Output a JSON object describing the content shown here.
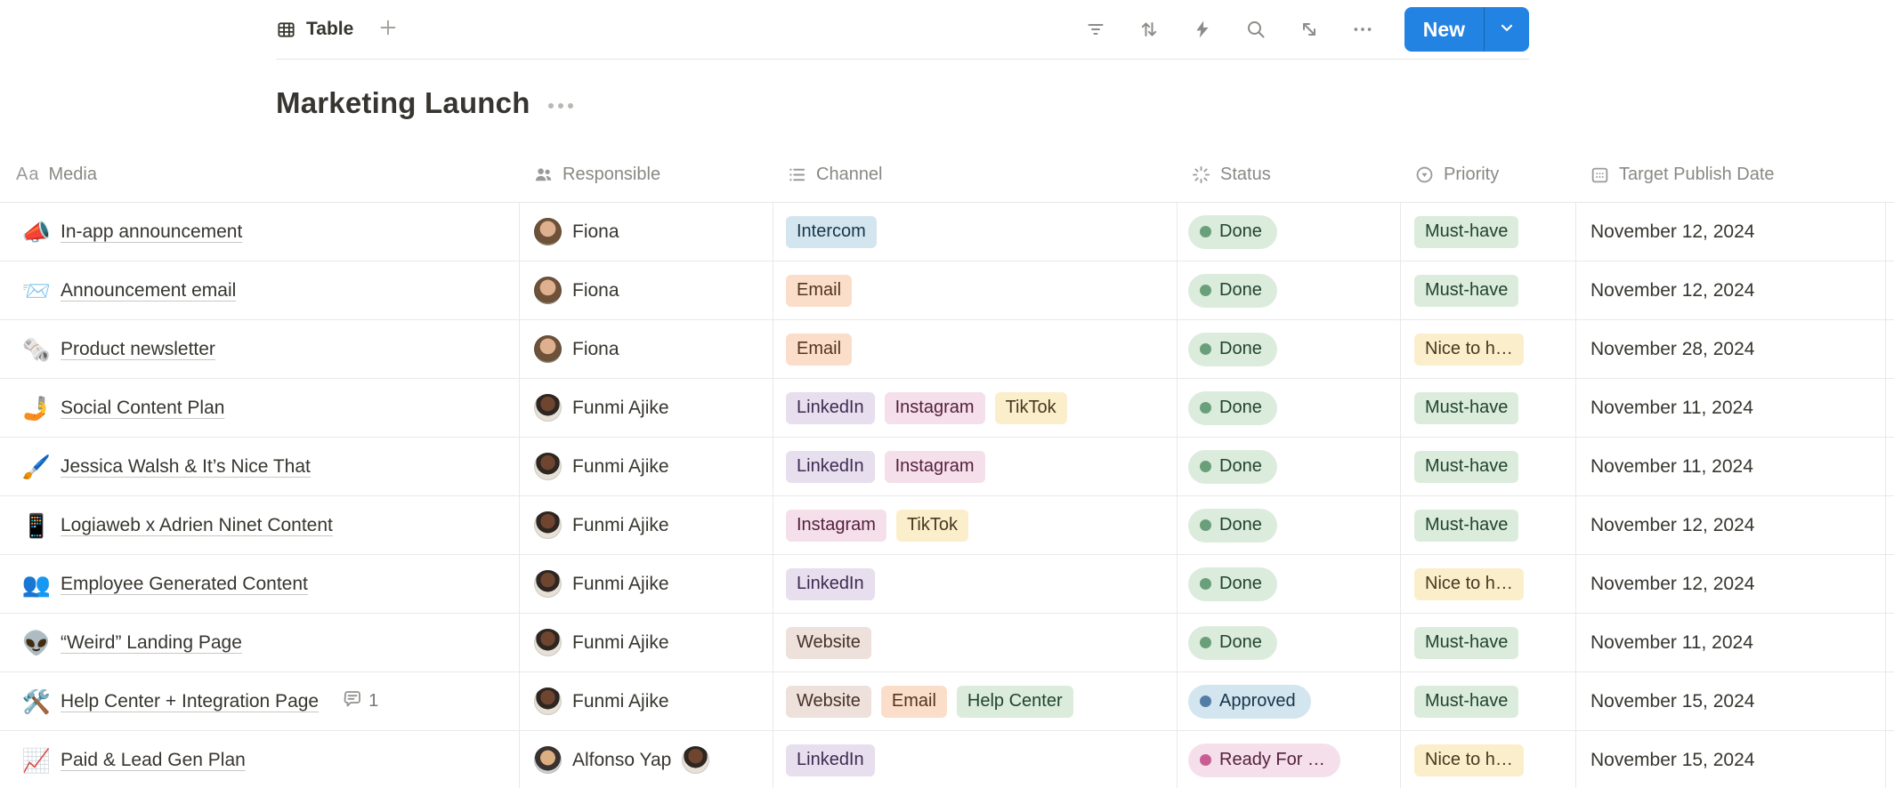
{
  "toolbar": {
    "view_tab": {
      "label": "Table",
      "icon": "table-view-icon"
    },
    "add_view_icon": "plus-icon",
    "action_icons": [
      "filter-icon",
      "sort-icon",
      "automation-icon",
      "search-icon",
      "expand-icon",
      "more-icon"
    ],
    "new_button": {
      "label": "New",
      "caret_icon": "chevron-down-icon"
    }
  },
  "page": {
    "title": "Marketing Launch",
    "menu_icon": "more-icon"
  },
  "palette": {
    "blue": {
      "bg": "#d3e5ef",
      "text": "#17344a"
    },
    "orange": {
      "bg": "#fadec9",
      "text": "#53351f"
    },
    "purple": {
      "bg": "#e7deee",
      "text": "#3d2b52"
    },
    "pink": {
      "bg": "#f4dfeb",
      "text": "#541f3b"
    },
    "yellow": {
      "bg": "#fbeecb",
      "text": "#473821"
    },
    "brown": {
      "bg": "#eee0da",
      "text": "#453229"
    },
    "green": {
      "bg": "#dcecdc",
      "text": "#20442e"
    },
    "status_dots": {
      "green": "#6a9f7b",
      "blue": "#527da5",
      "pink": "#c75d92"
    }
  },
  "table": {
    "columns": [
      {
        "key": "media",
        "label": "Media",
        "icon": "text-icon"
      },
      {
        "key": "resp",
        "label": "Responsible",
        "icon": "people-icon"
      },
      {
        "key": "channel",
        "label": "Channel",
        "icon": "list-icon"
      },
      {
        "key": "status",
        "label": "Status",
        "icon": "status-icon"
      },
      {
        "key": "priority",
        "label": "Priority",
        "icon": "priority-icon"
      },
      {
        "key": "date",
        "label": "Target Publish Date",
        "icon": "calendar-icon"
      }
    ],
    "rows": [
      {
        "media": {
          "emoji": "📣",
          "title": "In-app announcement"
        },
        "responsible": [
          {
            "name": "Fiona",
            "avatar": "fiona"
          }
        ],
        "channels": [
          {
            "label": "Intercom",
            "color": "blue"
          }
        ],
        "status": {
          "label": "Done",
          "color": "green"
        },
        "priority": {
          "label": "Must-have",
          "color": "green"
        },
        "date": "November 12, 2024"
      },
      {
        "media": {
          "emoji": "📨",
          "title": "Announcement email"
        },
        "responsible": [
          {
            "name": "Fiona",
            "avatar": "fiona"
          }
        ],
        "channels": [
          {
            "label": "Email",
            "color": "orange"
          }
        ],
        "status": {
          "label": "Done",
          "color": "green"
        },
        "priority": {
          "label": "Must-have",
          "color": "green"
        },
        "date": "November 12, 2024"
      },
      {
        "media": {
          "emoji": "🗞️",
          "title": "Product newsletter"
        },
        "responsible": [
          {
            "name": "Fiona",
            "avatar": "fiona"
          }
        ],
        "channels": [
          {
            "label": "Email",
            "color": "orange"
          }
        ],
        "status": {
          "label": "Done",
          "color": "green"
        },
        "priority": {
          "label": "Nice to h…",
          "color": "yellow"
        },
        "date": "November 28, 2024"
      },
      {
        "media": {
          "emoji": "🤳",
          "title": "Social Content Plan"
        },
        "responsible": [
          {
            "name": "Funmi Ajike",
            "avatar": "funmi"
          }
        ],
        "channels": [
          {
            "label": "LinkedIn",
            "color": "purple"
          },
          {
            "label": "Instagram",
            "color": "pink"
          },
          {
            "label": "TikTok",
            "color": "yellow"
          }
        ],
        "status": {
          "label": "Done",
          "color": "green"
        },
        "priority": {
          "label": "Must-have",
          "color": "green"
        },
        "date": "November 11, 2024"
      },
      {
        "media": {
          "emoji": "🖌️",
          "title": "Jessica Walsh & It’s Nice That"
        },
        "responsible": [
          {
            "name": "Funmi Ajike",
            "avatar": "funmi"
          }
        ],
        "channels": [
          {
            "label": "LinkedIn",
            "color": "purple"
          },
          {
            "label": "Instagram",
            "color": "pink"
          }
        ],
        "status": {
          "label": "Done",
          "color": "green"
        },
        "priority": {
          "label": "Must-have",
          "color": "green"
        },
        "date": "November 11, 2024"
      },
      {
        "media": {
          "emoji": "📱",
          "title": "Logiaweb x Adrien Ninet Content"
        },
        "responsible": [
          {
            "name": "Funmi Ajike",
            "avatar": "funmi"
          }
        ],
        "channels": [
          {
            "label": "Instagram",
            "color": "pink"
          },
          {
            "label": "TikTok",
            "color": "yellow"
          }
        ],
        "status": {
          "label": "Done",
          "color": "green"
        },
        "priority": {
          "label": "Must-have",
          "color": "green"
        },
        "date": "November 12, 2024"
      },
      {
        "media": {
          "emoji": "👥",
          "title": "Employee Generated Content"
        },
        "responsible": [
          {
            "name": "Funmi Ajike",
            "avatar": "funmi"
          }
        ],
        "channels": [
          {
            "label": "LinkedIn",
            "color": "purple"
          }
        ],
        "status": {
          "label": "Done",
          "color": "green"
        },
        "priority": {
          "label": "Nice to h…",
          "color": "yellow"
        },
        "date": "November 12, 2024"
      },
      {
        "media": {
          "emoji": "👽",
          "title": "“Weird” Landing Page"
        },
        "responsible": [
          {
            "name": "Funmi Ajike",
            "avatar": "funmi"
          }
        ],
        "channels": [
          {
            "label": "Website",
            "color": "brown"
          }
        ],
        "status": {
          "label": "Done",
          "color": "green"
        },
        "priority": {
          "label": "Must-have",
          "color": "green"
        },
        "date": "November 11, 2024"
      },
      {
        "media": {
          "emoji": "🛠️",
          "title": "Help Center + Integration Page",
          "comment_count": "1"
        },
        "responsible": [
          {
            "name": "Funmi Ajike",
            "avatar": "funmi"
          }
        ],
        "channels": [
          {
            "label": "Website",
            "color": "brown"
          },
          {
            "label": "Email",
            "color": "orange"
          },
          {
            "label": "Help Center",
            "color": "green"
          }
        ],
        "status": {
          "label": "Approved",
          "color": "blue"
        },
        "priority": {
          "label": "Must-have",
          "color": "green"
        },
        "date": "November 15, 2024"
      },
      {
        "media": {
          "emoji": "📈",
          "title": "Paid & Lead Gen Plan"
        },
        "responsible": [
          {
            "name": "Alfonso Yap",
            "avatar": "alfonso"
          },
          {
            "name": "",
            "avatar": "funmi"
          }
        ],
        "channels": [
          {
            "label": "LinkedIn",
            "color": "purple"
          }
        ],
        "status": {
          "label": "Ready For …",
          "color": "pink"
        },
        "priority": {
          "label": "Nice to h…",
          "color": "yellow"
        },
        "date": "November 15, 2024"
      }
    ]
  }
}
